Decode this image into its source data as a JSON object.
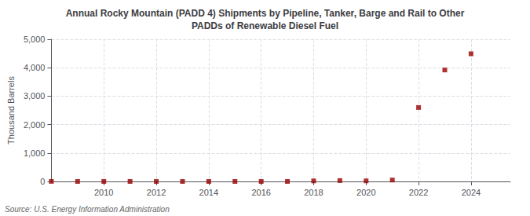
{
  "chart_data": {
    "type": "scatter",
    "title": "Annual Rocky Mountain (PADD 4) Shipments by Pipeline, Tanker, Barge and Rail to Other\nPADDs of Renewable Diesel Fuel",
    "ylabel": "Thousand Barrels",
    "source": "Source: U.S. Energy Information Administration",
    "x": [
      2008,
      2009,
      2010,
      2011,
      2012,
      2013,
      2014,
      2015,
      2016,
      2017,
      2018,
      2019,
      2020,
      2021,
      2022,
      2023,
      2024
    ],
    "values": [
      2,
      0,
      0,
      0,
      0,
      0,
      0,
      0,
      0,
      0,
      18,
      30,
      20,
      50,
      2600,
      3920,
      4490
    ],
    "color": "#990000",
    "marker": "square",
    "xlim": [
      2008.0,
      2025.5
    ],
    "xticks": [
      2010,
      2012,
      2014,
      2016,
      2018,
      2020,
      2022,
      2024
    ],
    "ylim": [
      0,
      5000
    ],
    "yticks": [
      0,
      {
        "value": 1000,
        "label": "1,000"
      },
      {
        "value": 2000,
        "label": "2,000"
      },
      {
        "value": 3000,
        "label": "3,000"
      },
      {
        "value": 4000,
        "label": "4,000"
      },
      {
        "value": 5000,
        "label": "5,000"
      }
    ],
    "grid": true
  }
}
